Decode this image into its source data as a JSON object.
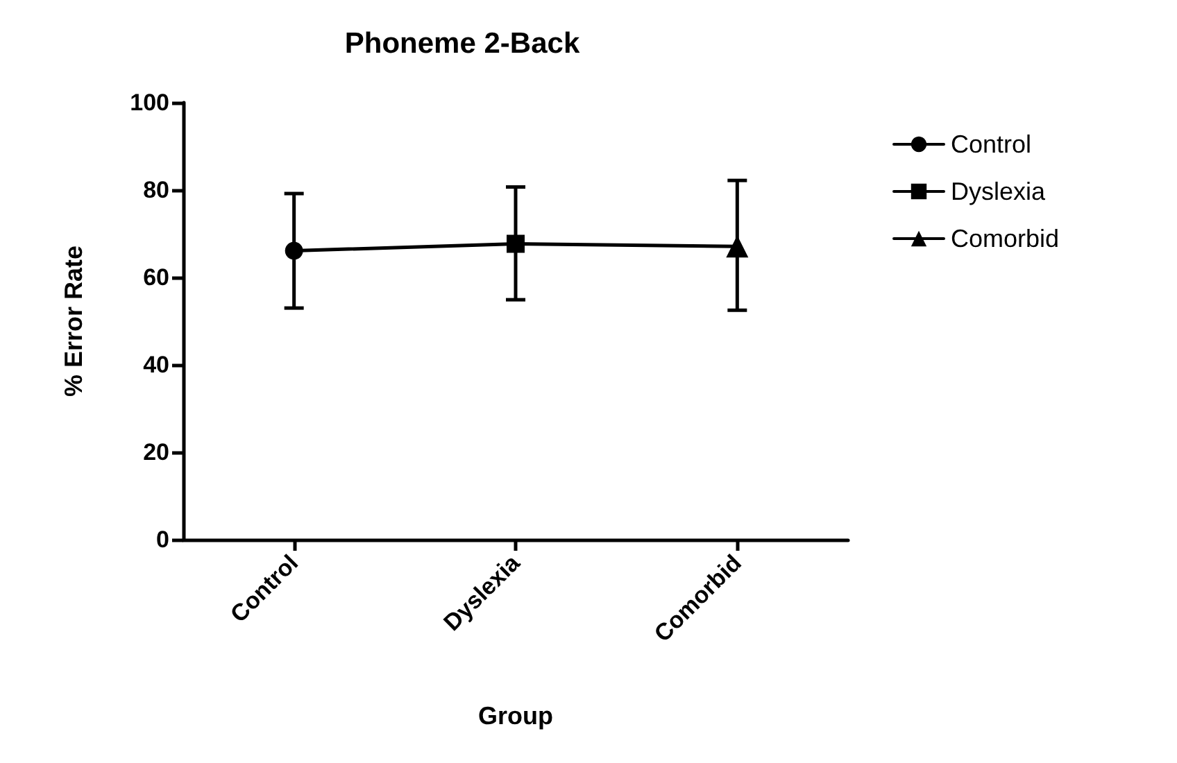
{
  "chart_data": {
    "type": "line",
    "title": "Phoneme 2-Back",
    "xlabel": "Group",
    "ylabel": "% Error Rate",
    "categories": [
      "Control",
      "Dyslexia",
      "Comorbid"
    ],
    "ylim": [
      0,
      100
    ],
    "yticks": [
      0,
      20,
      40,
      60,
      80,
      100
    ],
    "grid": false,
    "legend": "top right",
    "line_style": "solid",
    "series": [
      {
        "type": "line",
        "color": "#000000",
        "marker": "none",
        "values": [
          66.1,
          67.7,
          67.1
        ]
      },
      {
        "name": "Control",
        "color": "#000000",
        "marker": "circle",
        "x": [
          "Control"
        ],
        "values": [
          66.1
        ],
        "errors": [
          [
            53.0,
            79.2
          ]
        ]
      },
      {
        "name": "Dyslexia",
        "color": "#000000",
        "marker": "square",
        "x": [
          "Dyslexia"
        ],
        "values": [
          67.7
        ],
        "errors": [
          [
            54.9,
            80.7
          ]
        ]
      },
      {
        "name": "Comorbid",
        "color": "#000000",
        "marker": "triangle",
        "x": [
          "Comorbid"
        ],
        "values": [
          67.1
        ],
        "errors": [
          [
            52.5,
            82.2
          ]
        ]
      }
    ]
  }
}
